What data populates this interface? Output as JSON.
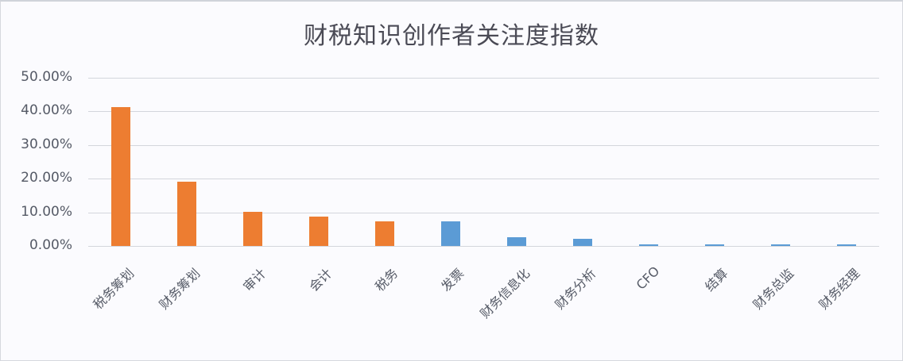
{
  "chart_data": {
    "type": "bar",
    "title": "财税知识创作者关注度指数",
    "xlabel": "",
    "ylabel": "",
    "ylim": [
      0,
      0.5
    ],
    "yticks": [
      "0.00%",
      "10.00%",
      "20.00%",
      "30.00%",
      "40.00%",
      "50.00%"
    ],
    "grid": true,
    "legend": null,
    "categories": [
      "税务筹划",
      "财务筹划",
      "审计",
      "会计",
      "税务",
      "发票",
      "财务信息化",
      "财务分析",
      "CFO",
      "结算",
      "财务总监",
      "财务经理"
    ],
    "values": [
      0.413,
      0.191,
      0.101,
      0.087,
      0.073,
      0.073,
      0.026,
      0.021,
      0.005,
      0.005,
      0.005,
      0.005
    ],
    "bar_colors": [
      "#ed7d31",
      "#ed7d31",
      "#ed7d31",
      "#ed7d31",
      "#ed7d31",
      "#5b9bd5",
      "#5b9bd5",
      "#5b9bd5",
      "#5b9bd5",
      "#5b9bd5",
      "#5b9bd5",
      "#5b9bd5"
    ]
  },
  "colors": {
    "orange": "#ed7d31",
    "blue": "#5b9bd5",
    "grid": "#d3d6dc",
    "text": "#555a66"
  }
}
